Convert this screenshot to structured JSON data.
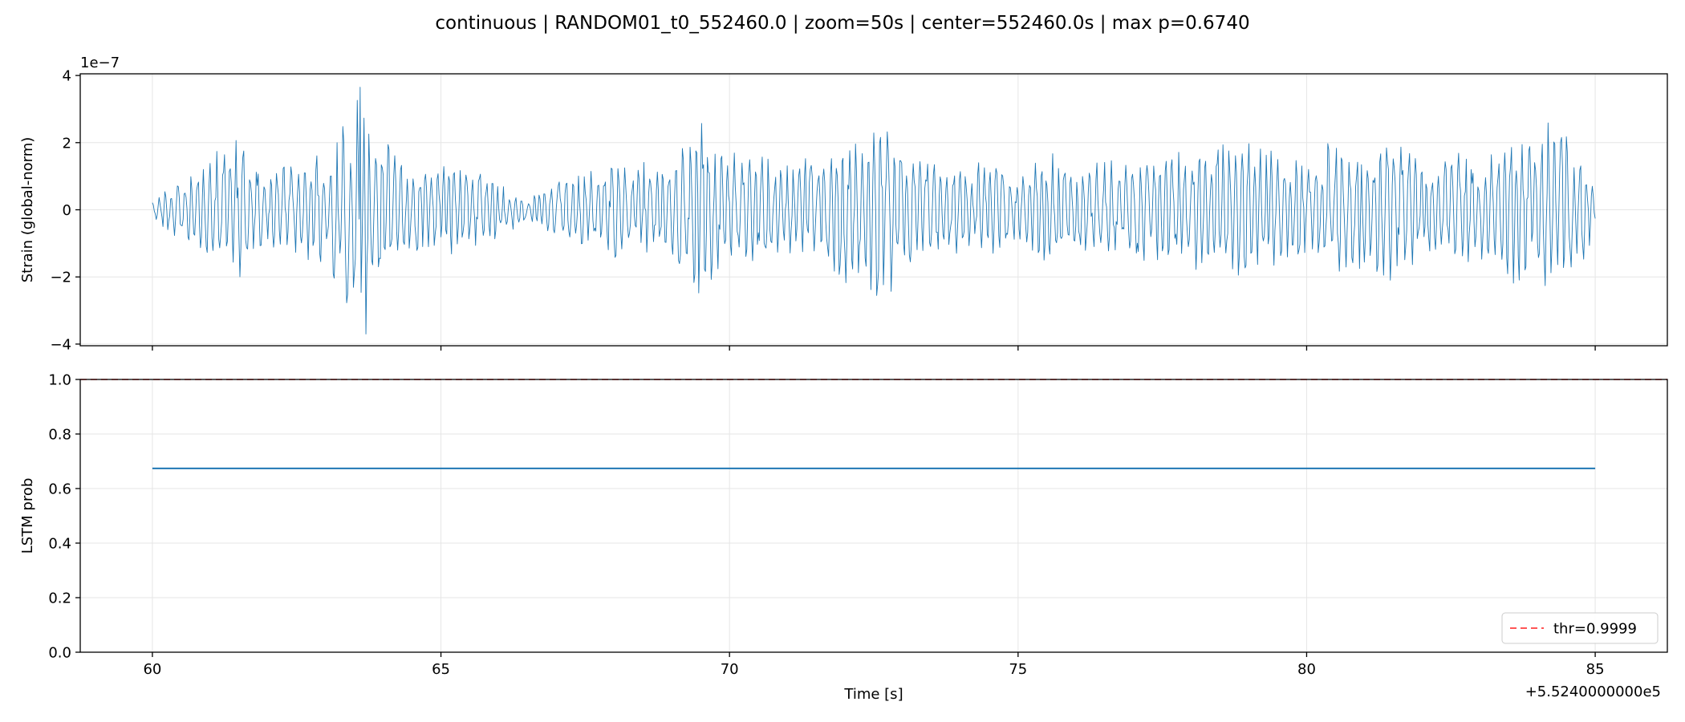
{
  "figure": {
    "title": "continuous | RANDOM01_t0_552460.0 | zoom=50s | center=552460.0s | max p=0.6740"
  },
  "colors": {
    "strain_line": "#1f77b4",
    "prob_line": "#1f77b4",
    "threshold_line": "#ff5555",
    "grid": "#e6e6e6",
    "axes": "#000000"
  },
  "chart_data": [
    {
      "type": "line",
      "title": "",
      "ylabel": "Strain (global-norm)",
      "xlabel": "",
      "y_scale_text": "1e−7",
      "x_offset": 552400,
      "xlim": [
        58.75,
        86.25
      ],
      "ylim": [
        -4.05e-07,
        4.05e-07
      ],
      "y_ticks": [
        -4e-07,
        -2e-07,
        0,
        2e-07,
        4e-07
      ],
      "y_tick_labels": [
        "−4",
        "−2",
        "0",
        "2",
        "4"
      ],
      "x_ticks": [
        60,
        65,
        70,
        75,
        80,
        85
      ],
      "x_tick_labels_shown": false,
      "grid": true,
      "series": [
        {
          "x_start": 60,
          "x_end": 85,
          "envelope_knots_x": [
            60,
            60.5,
            61,
            61.4,
            62,
            62.7,
            63,
            63.6,
            63.9,
            64.5,
            65,
            65.7,
            66,
            66.5,
            67,
            67.7,
            68,
            68.8,
            69,
            69.5,
            70,
            70.5,
            71,
            71.5,
            72,
            72.6,
            73,
            73.5,
            74,
            74.5,
            75,
            75.5,
            76,
            76.5,
            77,
            77.5,
            78,
            78.5,
            79,
            79.5,
            80,
            80.5,
            81,
            81.5,
            82,
            82.5,
            83,
            83.5,
            84,
            84.3,
            84.6,
            85
          ],
          "envelope_knots_y": [
            3e-08,
            1e-07,
            1.5e-07,
            2.4e-07,
            1.3e-07,
            1.7e-07,
            1.8e-07,
            3.6e-07,
            2.6e-07,
            1.4e-07,
            1.5e-07,
            1.4e-07,
            9e-08,
            3e-08,
            1e-07,
            1.2e-07,
            1.7e-07,
            1.3e-07,
            1.7e-07,
            2.8e-07,
            1.8e-07,
            1.7e-07,
            1.4e-07,
            1.8e-07,
            2.2e-07,
            3.1e-07,
            1.9e-07,
            1.6e-07,
            1.3e-07,
            1.6e-07,
            1.1e-07,
            1.8e-07,
            1.4e-07,
            1.5e-07,
            1.5e-07,
            1.9e-07,
            1.8e-07,
            2.1e-07,
            2.4e-07,
            1.8e-07,
            1.7e-07,
            2.2e-07,
            1.8e-07,
            2.4e-07,
            1.4e-07,
            1.9e-07,
            1.5e-07,
            2.3e-07,
            2e-07,
            3.3e-07,
            2.2e-07,
            1e-07
          ],
          "peak_value": 3.65e-07,
          "trough_value": -3.7e-07
        }
      ]
    },
    {
      "type": "line",
      "title": "",
      "ylabel": "LSTM prob",
      "xlabel": "Time [s]",
      "x_offset_text": "+5.5240000000e5",
      "xlim": [
        58.75,
        86.25
      ],
      "ylim": [
        0,
        1
      ],
      "y_ticks": [
        0,
        0.2,
        0.4,
        0.6,
        0.8,
        1
      ],
      "y_tick_labels": [
        "0.0",
        "0.2",
        "0.4",
        "0.6",
        "0.8",
        "1.0"
      ],
      "x_ticks": [
        60,
        65,
        70,
        75,
        80,
        85
      ],
      "x_tick_labels": [
        "60",
        "65",
        "70",
        "75",
        "80",
        "85"
      ],
      "grid": true,
      "legend_position": "lower-right",
      "series": [
        {
          "x": [
            60,
            85
          ],
          "y": [
            0.674,
            0.674
          ]
        },
        {
          "name": "thr=0.9999",
          "style": "dashed",
          "horizontal_y": 0.9999
        }
      ]
    }
  ]
}
